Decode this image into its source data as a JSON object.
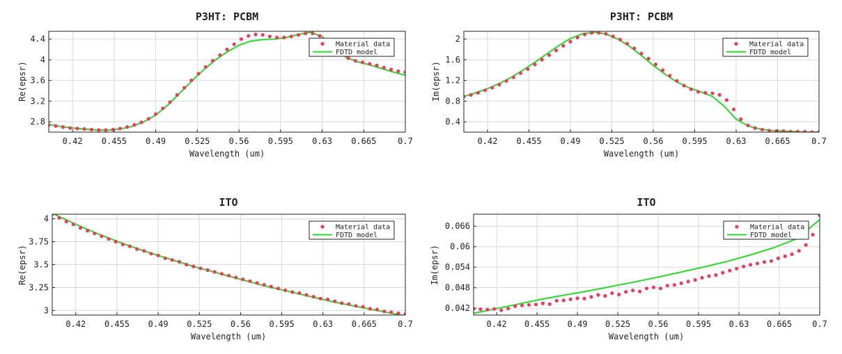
{
  "colors": {
    "data_marker": "#ee3b5b",
    "model_line": "#22dd22",
    "grid": "#d9d9d9",
    "axis": "#222222"
  },
  "chart_data": [
    {
      "type": "line",
      "title": "P3HT: PCBM",
      "xlabel": "Wavelength (um)",
      "ylabel": "Re(epsr)",
      "xlim": [
        0.4,
        0.7
      ],
      "ylim": [
        2.6,
        4.55
      ],
      "xticks": [
        "0.42",
        "0.455",
        "0.49",
        "0.525",
        "0.56",
        "0.595",
        "0.63",
        "0.665",
        "0.7"
      ],
      "yticks": [
        "2.8",
        "3.2",
        "3.6",
        "4",
        "4.4"
      ],
      "grid": true,
      "legend_position": "top-right",
      "series": [
        {
          "name": "Material data",
          "style": "markers",
          "x": [
            0.4,
            0.406,
            0.412,
            0.418,
            0.424,
            0.43,
            0.436,
            0.442,
            0.448,
            0.454,
            0.46,
            0.466,
            0.472,
            0.478,
            0.484,
            0.49,
            0.496,
            0.502,
            0.508,
            0.514,
            0.52,
            0.526,
            0.532,
            0.538,
            0.544,
            0.55,
            0.556,
            0.562,
            0.568,
            0.574,
            0.58,
            0.586,
            0.592,
            0.598,
            0.604,
            0.61,
            0.616,
            0.622,
            0.628,
            0.634,
            0.64,
            0.646,
            0.652,
            0.658,
            0.664,
            0.67,
            0.676,
            0.682,
            0.688,
            0.694,
            0.7
          ],
          "y": [
            2.74,
            2.72,
            2.7,
            2.68,
            2.67,
            2.66,
            2.65,
            2.64,
            2.64,
            2.65,
            2.67,
            2.7,
            2.74,
            2.79,
            2.86,
            2.95,
            3.06,
            3.18,
            3.32,
            3.46,
            3.6,
            3.73,
            3.86,
            3.98,
            4.09,
            4.2,
            4.3,
            4.4,
            4.46,
            4.49,
            4.48,
            4.45,
            4.43,
            4.43,
            4.45,
            4.48,
            4.51,
            4.51,
            4.46,
            4.36,
            4.23,
            4.12,
            4.03,
            3.98,
            3.95,
            3.92,
            3.89,
            3.85,
            3.81,
            3.78,
            3.76
          ]
        },
        {
          "name": "FDTD model",
          "style": "line",
          "x": [
            0.4,
            0.41,
            0.42,
            0.43,
            0.44,
            0.45,
            0.46,
            0.47,
            0.48,
            0.49,
            0.5,
            0.51,
            0.52,
            0.53,
            0.54,
            0.55,
            0.56,
            0.57,
            0.58,
            0.59,
            0.6,
            0.61,
            0.62,
            0.63,
            0.64,
            0.65,
            0.66,
            0.67,
            0.68,
            0.69,
            0.7
          ],
          "y": [
            2.75,
            2.71,
            2.68,
            2.66,
            2.64,
            2.64,
            2.66,
            2.71,
            2.8,
            2.93,
            3.12,
            3.35,
            3.58,
            3.8,
            3.99,
            4.15,
            4.28,
            4.36,
            4.39,
            4.4,
            4.43,
            4.49,
            4.53,
            4.45,
            4.22,
            4.05,
            3.96,
            3.9,
            3.83,
            3.76,
            3.7
          ]
        }
      ]
    },
    {
      "type": "line",
      "title": "P3HT: PCBM",
      "xlabel": "Wavelength (um)",
      "ylabel": "Im(epsr)",
      "xlim": [
        0.4,
        0.7
      ],
      "ylim": [
        0.2,
        2.15
      ],
      "xticks": [
        "0.42",
        "0.455",
        "0.49",
        "0.525",
        "0.56",
        "0.595",
        "0.63",
        "0.665",
        "0.7"
      ],
      "yticks": [
        "0.4",
        "0.8",
        "1.2",
        "1.6",
        "2"
      ],
      "grid": true,
      "legend_position": "top-right",
      "series": [
        {
          "name": "Material data",
          "style": "markers",
          "x": [
            0.4,
            0.406,
            0.412,
            0.418,
            0.424,
            0.43,
            0.436,
            0.442,
            0.448,
            0.454,
            0.46,
            0.466,
            0.472,
            0.478,
            0.484,
            0.49,
            0.496,
            0.502,
            0.508,
            0.514,
            0.52,
            0.526,
            0.532,
            0.538,
            0.544,
            0.55,
            0.556,
            0.562,
            0.568,
            0.574,
            0.58,
            0.586,
            0.592,
            0.598,
            0.604,
            0.61,
            0.616,
            0.622,
            0.628,
            0.634,
            0.64,
            0.646,
            0.652,
            0.658,
            0.664,
            0.67,
            0.676,
            0.682,
            0.688,
            0.694,
            0.7
          ],
          "y": [
            0.89,
            0.92,
            0.96,
            1.01,
            1.06,
            1.12,
            1.19,
            1.26,
            1.34,
            1.42,
            1.51,
            1.6,
            1.69,
            1.78,
            1.87,
            1.95,
            2.03,
            2.09,
            2.12,
            2.12,
            2.1,
            2.05,
            1.99,
            1.91,
            1.82,
            1.72,
            1.62,
            1.51,
            1.4,
            1.29,
            1.19,
            1.1,
            1.03,
            0.98,
            0.96,
            0.95,
            0.92,
            0.82,
            0.64,
            0.45,
            0.33,
            0.28,
            0.25,
            0.23,
            0.22,
            0.22,
            0.21,
            0.21,
            0.21,
            0.2,
            0.2
          ]
        },
        {
          "name": "FDTD model",
          "style": "line",
          "x": [
            0.4,
            0.41,
            0.42,
            0.43,
            0.44,
            0.45,
            0.46,
            0.47,
            0.48,
            0.49,
            0.5,
            0.51,
            0.52,
            0.53,
            0.54,
            0.55,
            0.56,
            0.57,
            0.58,
            0.59,
            0.6,
            0.61,
            0.62,
            0.63,
            0.64,
            0.65,
            0.66,
            0.67,
            0.68,
            0.69,
            0.7
          ],
          "y": [
            0.89,
            0.96,
            1.04,
            1.14,
            1.26,
            1.4,
            1.55,
            1.71,
            1.87,
            2.01,
            2.1,
            2.13,
            2.1,
            2.0,
            1.86,
            1.68,
            1.49,
            1.32,
            1.17,
            1.06,
            0.98,
            0.89,
            0.7,
            0.45,
            0.32,
            0.26,
            0.23,
            0.22,
            0.21,
            0.2,
            0.2
          ]
        }
      ]
    },
    {
      "type": "line",
      "title": "ITO",
      "xlabel": "Wavelength (um)",
      "ylabel": "Re(epsr)",
      "xlim": [
        0.4,
        0.7
      ],
      "ylim": [
        2.95,
        4.05
      ],
      "xticks": [
        "0.42",
        "0.455",
        "0.49",
        "0.525",
        "0.56",
        "0.595",
        "0.63",
        "0.665",
        "0.7"
      ],
      "yticks": [
        "3",
        "3.25",
        "3.5",
        "3.75",
        "4"
      ],
      "grid": true,
      "legend_position": "top-right",
      "series": [
        {
          "name": "Material data",
          "style": "markers",
          "x": [
            0.4,
            0.406,
            0.412,
            0.418,
            0.424,
            0.43,
            0.436,
            0.442,
            0.448,
            0.454,
            0.46,
            0.466,
            0.472,
            0.478,
            0.484,
            0.49,
            0.496,
            0.502,
            0.508,
            0.514,
            0.52,
            0.526,
            0.532,
            0.538,
            0.544,
            0.55,
            0.556,
            0.562,
            0.568,
            0.574,
            0.58,
            0.586,
            0.592,
            0.598,
            0.604,
            0.61,
            0.616,
            0.622,
            0.628,
            0.634,
            0.64,
            0.646,
            0.652,
            0.658,
            0.664,
            0.67,
            0.676,
            0.682,
            0.688,
            0.694,
            0.7
          ],
          "y": [
            4.05,
            4.01,
            3.97,
            3.94,
            3.9,
            3.87,
            3.84,
            3.81,
            3.78,
            3.75,
            3.72,
            3.7,
            3.67,
            3.65,
            3.62,
            3.6,
            3.57,
            3.55,
            3.53,
            3.5,
            3.48,
            3.46,
            3.44,
            3.42,
            3.4,
            3.38,
            3.36,
            3.34,
            3.32,
            3.3,
            3.28,
            3.26,
            3.24,
            3.22,
            3.2,
            3.19,
            3.17,
            3.15,
            3.13,
            3.12,
            3.1,
            3.08,
            3.07,
            3.05,
            3.04,
            3.02,
            3.01,
            2.99,
            2.98,
            2.97,
            2.96
          ]
        },
        {
          "name": "FDTD model",
          "style": "line",
          "x": [
            0.4,
            0.42,
            0.44,
            0.46,
            0.48,
            0.5,
            0.52,
            0.54,
            0.56,
            0.58,
            0.6,
            0.62,
            0.64,
            0.66,
            0.68,
            0.7
          ],
          "y": [
            4.06,
            3.94,
            3.83,
            3.73,
            3.64,
            3.56,
            3.48,
            3.41,
            3.34,
            3.27,
            3.21,
            3.15,
            3.09,
            3.04,
            2.99,
            2.94
          ]
        }
      ]
    },
    {
      "type": "line",
      "title": "ITO",
      "xlabel": "Wavelength (um)",
      "ylabel": "Im(epsr)",
      "xlim": [
        0.4,
        0.7
      ],
      "ylim": [
        0.04,
        0.0695
      ],
      "xticks": [
        "0.42",
        "0.455",
        "0.49",
        "0.525",
        "0.56",
        "0.595",
        "0.63",
        "0.665",
        "0.7"
      ],
      "yticks": [
        "0.042",
        "0.048",
        "0.054",
        "0.06",
        "0.066"
      ],
      "grid": true,
      "legend_position": "top-right",
      "series": [
        {
          "name": "Material data",
          "style": "markers",
          "x": [
            0.4,
            0.406,
            0.412,
            0.418,
            0.424,
            0.43,
            0.436,
            0.442,
            0.448,
            0.454,
            0.46,
            0.466,
            0.472,
            0.478,
            0.484,
            0.49,
            0.496,
            0.502,
            0.508,
            0.514,
            0.52,
            0.526,
            0.532,
            0.538,
            0.544,
            0.55,
            0.556,
            0.562,
            0.568,
            0.574,
            0.58,
            0.586,
            0.592,
            0.598,
            0.604,
            0.61,
            0.616,
            0.622,
            0.628,
            0.634,
            0.64,
            0.646,
            0.652,
            0.658,
            0.664,
            0.67,
            0.676,
            0.682,
            0.688,
            0.694,
            0.7
          ],
          "y": [
            0.0418,
            0.0417,
            0.0416,
            0.0418,
            0.0414,
            0.0419,
            0.0426,
            0.0428,
            0.043,
            0.0431,
            0.0434,
            0.0432,
            0.0442,
            0.0443,
            0.0446,
            0.0449,
            0.0448,
            0.0453,
            0.0459,
            0.0456,
            0.0464,
            0.046,
            0.0468,
            0.0472,
            0.0469,
            0.0478,
            0.0481,
            0.0478,
            0.0486,
            0.0488,
            0.0493,
            0.0498,
            0.0503,
            0.0509,
            0.0514,
            0.0517,
            0.0524,
            0.053,
            0.0536,
            0.0542,
            0.0547,
            0.0551,
            0.0555,
            0.0558,
            0.0566,
            0.0572,
            0.0578,
            0.0588,
            0.0605,
            0.0635,
            0.0692
          ]
        },
        {
          "name": "FDTD model",
          "style": "line",
          "x": [
            0.4,
            0.42,
            0.44,
            0.46,
            0.48,
            0.5,
            0.52,
            0.54,
            0.56,
            0.58,
            0.6,
            0.62,
            0.64,
            0.66,
            0.68,
            0.7
          ],
          "y": [
            0.0405,
            0.0419,
            0.0433,
            0.0447,
            0.0459,
            0.0471,
            0.0484,
            0.0497,
            0.0511,
            0.0526,
            0.0541,
            0.0557,
            0.0576,
            0.0597,
            0.0623,
            0.0679
          ]
        }
      ]
    }
  ]
}
